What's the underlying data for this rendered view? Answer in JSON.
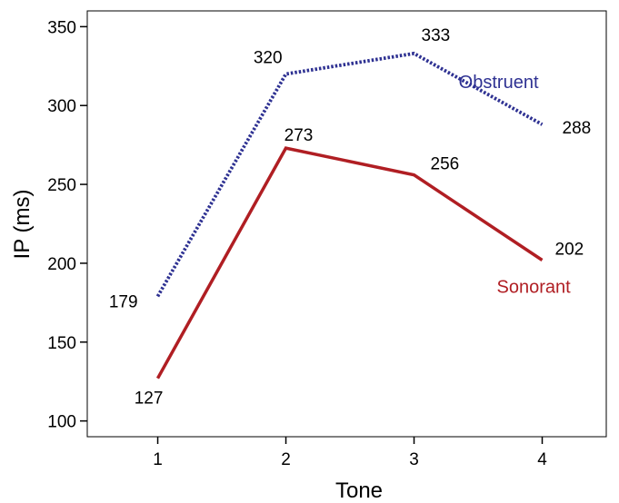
{
  "chart_data": {
    "type": "line",
    "xlabel": "Tone",
    "ylabel": "IP (ms)",
    "x": [
      1,
      2,
      3,
      4
    ],
    "ylim": [
      90,
      360
    ],
    "xlim": [
      0.45,
      4.5
    ],
    "yticks": [
      100,
      150,
      200,
      250,
      300,
      350
    ],
    "xticks": [
      1,
      2,
      3,
      4
    ],
    "grid": false,
    "legend": "none (series labelled directly on lines)",
    "series": [
      {
        "name": "Obstruent",
        "values": [
          179,
          320,
          333,
          288
        ],
        "color": "#2e3192",
        "style": "dotted",
        "label_position": "above-right"
      },
      {
        "name": "Sonorant",
        "values": [
          127,
          273,
          256,
          202
        ],
        "color": "#b01e23",
        "style": "solid",
        "label_position": "below-right"
      }
    ]
  }
}
